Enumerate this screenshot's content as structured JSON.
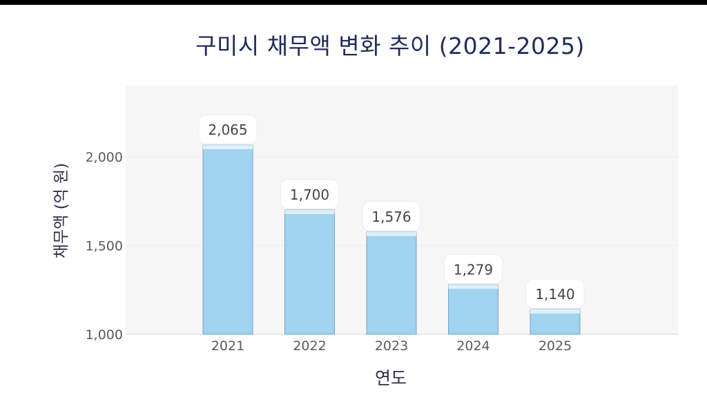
{
  "chart_data": {
    "type": "bar",
    "title": "구미시 채무액 변화 추이 (2021-2025)",
    "xlabel": "연도",
    "ylabel": "채무액 (억 원)",
    "categories": [
      "2021",
      "2022",
      "2023",
      "2024",
      "2025"
    ],
    "values": [
      2065,
      1700,
      1576,
      1279,
      1140
    ],
    "value_labels": [
      "2,065",
      "1,700",
      "1,576",
      "1,279",
      "1,140"
    ],
    "yticks": [
      1000,
      1500,
      2000
    ],
    "ytick_labels": [
      "1,000",
      "1,500",
      "2,000"
    ],
    "ylim": [
      1000,
      2400
    ],
    "grid": true,
    "colors": {
      "bar": "#9fd3ee",
      "bar_edge": "#7e9fc8",
      "bar_cap": "#dcf0fb",
      "plot_bg": "#f6f6f6",
      "title": "#1f2a5c",
      "tick_text": "#5a5a5a"
    }
  }
}
